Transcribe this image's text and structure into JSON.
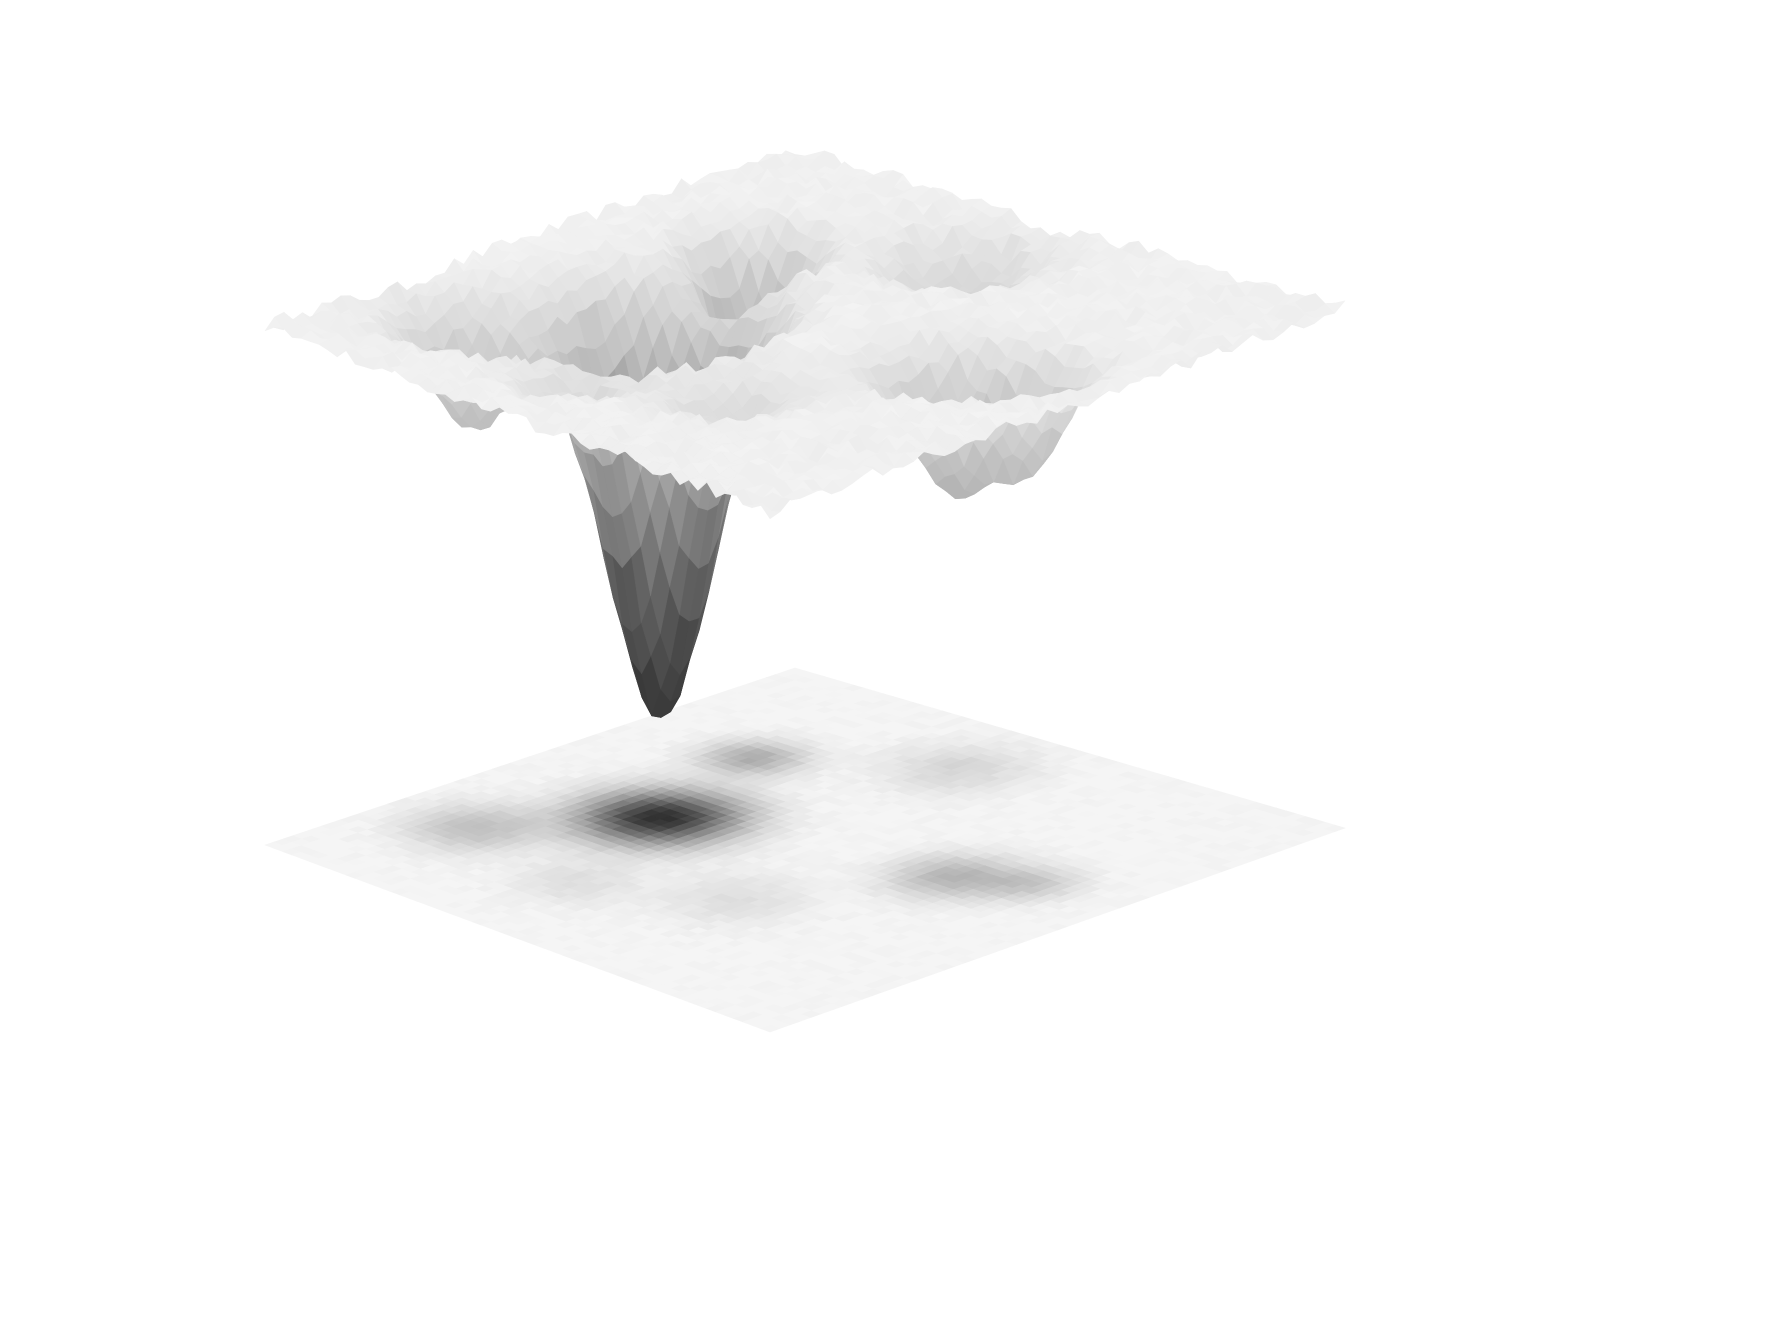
{
  "chart_data": {
    "type": "surface3d",
    "title": "",
    "xlabel": "",
    "ylabel": "",
    "zlabel": "",
    "axes_visible": false,
    "grid": false,
    "legend": "none",
    "floor_projection": "contour-heatmap",
    "colormap": "greys",
    "surface_color": "#f0f0f0",
    "floor_dark_color": "#1a1a1a",
    "background_color": "#ffffff",
    "x_range": [
      0,
      1
    ],
    "y_range": [
      0,
      1
    ],
    "z_range": [
      0,
      1
    ],
    "baseline_level": 1,
    "noise_amplitude": 0.03,
    "wells": [
      {
        "x": 0.3,
        "y": 0.45,
        "depth": 0.88,
        "width": 0.075
      },
      {
        "x": 0.15,
        "y": 0.25,
        "depth": 0.24,
        "width": 0.065
      },
      {
        "x": 0.22,
        "y": 0.7,
        "depth": 0.32,
        "width": 0.05
      },
      {
        "x": 0.75,
        "y": 0.55,
        "depth": 0.28,
        "width": 0.06
      },
      {
        "x": 0.85,
        "y": 0.6,
        "depth": 0.18,
        "width": 0.045
      },
      {
        "x": 0.45,
        "y": 0.85,
        "depth": 0.14,
        "width": 0.07
      },
      {
        "x": 0.6,
        "y": 0.3,
        "depth": 0.1,
        "width": 0.07
      },
      {
        "x": 0.4,
        "y": 0.2,
        "depth": 0.1,
        "width": 0.06
      }
    ]
  }
}
